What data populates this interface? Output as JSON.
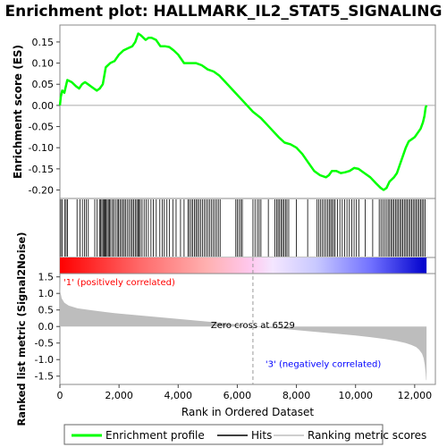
{
  "chart_data": {
    "type": "line",
    "title": "Enrichment plot: HALLMARK_IL2_STAT5_SIGNALING",
    "n_genes": 12400,
    "colors": {
      "es_line": "#00ff00",
      "hits": "#000000",
      "metric_fill": "#bdbdbd",
      "pos_label": "#ff0000",
      "neg_label": "#0000ff",
      "axes": "#888888"
    },
    "es_panel": {
      "ylabel": "Enrichment score (ES)",
      "ylim": [
        -0.22,
        0.19
      ],
      "yticks": [
        0.15,
        0.1,
        0.05,
        0.0,
        -0.05,
        -0.1,
        -0.15,
        -0.2
      ],
      "ytick_labels": [
        "0.15",
        "0.10",
        "0.05",
        "0.00",
        "-0.05",
        "-0.10",
        "-0.15",
        "-0.20"
      ],
      "points": [
        [
          0,
          0.0
        ],
        [
          30,
          0.02
        ],
        [
          80,
          0.035
        ],
        [
          150,
          0.03
        ],
        [
          250,
          0.06
        ],
        [
          400,
          0.055
        ],
        [
          550,
          0.045
        ],
        [
          650,
          0.04
        ],
        [
          750,
          0.05
        ],
        [
          850,
          0.055
        ],
        [
          950,
          0.05
        ],
        [
          1050,
          0.045
        ],
        [
          1150,
          0.04
        ],
        [
          1250,
          0.035
        ],
        [
          1350,
          0.04
        ],
        [
          1450,
          0.05
        ],
        [
          1550,
          0.09
        ],
        [
          1700,
          0.1
        ],
        [
          1850,
          0.105
        ],
        [
          2000,
          0.12
        ],
        [
          2150,
          0.13
        ],
        [
          2300,
          0.135
        ],
        [
          2450,
          0.14
        ],
        [
          2550,
          0.15
        ],
        [
          2650,
          0.17
        ],
        [
          2750,
          0.165
        ],
        [
          2900,
          0.155
        ],
        [
          3000,
          0.16
        ],
        [
          3100,
          0.16
        ],
        [
          3250,
          0.155
        ],
        [
          3400,
          0.14
        ],
        [
          3550,
          0.14
        ],
        [
          3700,
          0.138
        ],
        [
          3850,
          0.13
        ],
        [
          4000,
          0.12
        ],
        [
          4200,
          0.1
        ],
        [
          4400,
          0.1
        ],
        [
          4600,
          0.1
        ],
        [
          4800,
          0.095
        ],
        [
          5000,
          0.085
        ],
        [
          5200,
          0.08
        ],
        [
          5400,
          0.07
        ],
        [
          5600,
          0.055
        ],
        [
          5800,
          0.04
        ],
        [
          6000,
          0.025
        ],
        [
          6200,
          0.01
        ],
        [
          6529,
          -0.015
        ],
        [
          6800,
          -0.03
        ],
        [
          7000,
          -0.045
        ],
        [
          7200,
          -0.06
        ],
        [
          7400,
          -0.075
        ],
        [
          7600,
          -0.088
        ],
        [
          7800,
          -0.092
        ],
        [
          8000,
          -0.1
        ],
        [
          8200,
          -0.115
        ],
        [
          8400,
          -0.135
        ],
        [
          8600,
          -0.155
        ],
        [
          8800,
          -0.165
        ],
        [
          9000,
          -0.17
        ],
        [
          9100,
          -0.165
        ],
        [
          9200,
          -0.155
        ],
        [
          9350,
          -0.155
        ],
        [
          9500,
          -0.16
        ],
        [
          9650,
          -0.158
        ],
        [
          9800,
          -0.155
        ],
        [
          9950,
          -0.148
        ],
        [
          10100,
          -0.15
        ],
        [
          10300,
          -0.16
        ],
        [
          10500,
          -0.17
        ],
        [
          10700,
          -0.185
        ],
        [
          10850,
          -0.195
        ],
        [
          10950,
          -0.2
        ],
        [
          11050,
          -0.195
        ],
        [
          11150,
          -0.18
        ],
        [
          11300,
          -0.17
        ],
        [
          11400,
          -0.16
        ],
        [
          11500,
          -0.14
        ],
        [
          11600,
          -0.12
        ],
        [
          11700,
          -0.1
        ],
        [
          11800,
          -0.085
        ],
        [
          11900,
          -0.08
        ],
        [
          12000,
          -0.075
        ],
        [
          12100,
          -0.065
        ],
        [
          12200,
          -0.055
        ],
        [
          12280,
          -0.04
        ],
        [
          12330,
          -0.025
        ],
        [
          12370,
          -0.005
        ],
        [
          12400,
          0.0
        ]
      ]
    },
    "hits": [
      30,
      80,
      160,
      210,
      260,
      580,
      680,
      760,
      830,
      890,
      960,
      1180,
      1260,
      1340,
      1380,
      1420,
      1460,
      1500,
      1530,
      1560,
      1600,
      1640,
      1680,
      1720,
      1780,
      1820,
      1880,
      1940,
      1980,
      2030,
      2080,
      2130,
      2180,
      2230,
      2290,
      2340,
      2400,
      2450,
      2500,
      2550,
      2600,
      2640,
      2680,
      2720,
      2780,
      2850,
      2920,
      2990,
      3080,
      3160,
      3260,
      3380,
      3460,
      3530,
      3620,
      3700,
      3820,
      3930,
      4080,
      4200,
      4330,
      4380,
      4440,
      4490,
      4550,
      4600,
      4650,
      4700,
      4760,
      4820,
      4880,
      4940,
      5000,
      5060,
      5120,
      5180,
      5240,
      5300,
      5360,
      5420,
      5950,
      6000,
      6060,
      6120,
      6170,
      6530,
      6600,
      6680,
      6740,
      6800,
      7050,
      7270,
      7330,
      7380,
      7430,
      7480,
      7530,
      7580,
      7630,
      7680,
      7740,
      8000,
      8380,
      8700,
      8760,
      8820,
      8880,
      8940,
      9000,
      9060,
      9110,
      9160,
      9210,
      9260,
      9310,
      9390,
      9470,
      9550,
      9630,
      9710,
      9790,
      9870,
      9950,
      10030,
      10110,
      10330,
      10580,
      10800,
      10860,
      10920,
      10980,
      11040,
      11100,
      11150,
      11200,
      11250,
      11300,
      11350,
      11400,
      11450,
      11500,
      11550,
      11600,
      11650,
      11700,
      11750,
      11800,
      11850,
      11900,
      11950,
      12000,
      12050,
      12100,
      12150,
      12200,
      12250,
      12300,
      12350
    ],
    "metric_panel": {
      "ylabel": "Ranked list metric (Signal2Noise)",
      "ylim": [
        -1.75,
        1.6
      ],
      "yticks": [
        1.5,
        1.0,
        0.5,
        0.0,
        -0.5,
        -1.0,
        -1.5
      ],
      "ytick_labels": [
        "1.5",
        "1.0",
        "0.5",
        "0.0",
        "-0.5",
        "-1.0",
        "-1.5"
      ],
      "points": [
        [
          0,
          1.5
        ],
        [
          15,
          1.05
        ],
        [
          60,
          0.85
        ],
        [
          150,
          0.72
        ],
        [
          300,
          0.63
        ],
        [
          600,
          0.55
        ],
        [
          1000,
          0.5
        ],
        [
          1500,
          0.44
        ],
        [
          2000,
          0.39
        ],
        [
          2500,
          0.35
        ],
        [
          3000,
          0.31
        ],
        [
          3500,
          0.27
        ],
        [
          4000,
          0.23
        ],
        [
          4500,
          0.19
        ],
        [
          5000,
          0.15
        ],
        [
          5500,
          0.11
        ],
        [
          6000,
          0.06
        ],
        [
          6529,
          0.0
        ],
        [
          7000,
          -0.04
        ],
        [
          7500,
          -0.07
        ],
        [
          8000,
          -0.11
        ],
        [
          8500,
          -0.15
        ],
        [
          9000,
          -0.19
        ],
        [
          9500,
          -0.23
        ],
        [
          10000,
          -0.27
        ],
        [
          10500,
          -0.32
        ],
        [
          11000,
          -0.38
        ],
        [
          11400,
          -0.44
        ],
        [
          11700,
          -0.5
        ],
        [
          11900,
          -0.56
        ],
        [
          12050,
          -0.62
        ],
        [
          12150,
          -0.7
        ],
        [
          12250,
          -0.82
        ],
        [
          12300,
          -0.95
        ],
        [
          12340,
          -1.15
        ],
        [
          12370,
          -1.4
        ],
        [
          12390,
          -1.62
        ],
        [
          12400,
          -1.62
        ]
      ],
      "zero_cross_rank": 6529
    },
    "xaxis": {
      "label": "Rank in Ordered Dataset",
      "ticks": [
        0,
        2000,
        4000,
        6000,
        8000,
        10000,
        12000
      ],
      "tick_labels": [
        "0",
        "2,000",
        "4,000",
        "6,000",
        "8,000",
        "10,000",
        "12,000"
      ],
      "xlim": [
        0,
        12700
      ]
    },
    "annotations": {
      "positive": "'1' (positively correlated)",
      "negative": "'3' (negatively correlated)",
      "zero_cross": "Zero cross at 6529"
    },
    "legend": {
      "position": "bottom",
      "entries": [
        {
          "label": "Enrichment profile",
          "color": "#00ff00"
        },
        {
          "label": "Hits",
          "color": "#000000"
        },
        {
          "label": "Ranking metric scores",
          "color": "#bdbdbd"
        }
      ]
    }
  }
}
